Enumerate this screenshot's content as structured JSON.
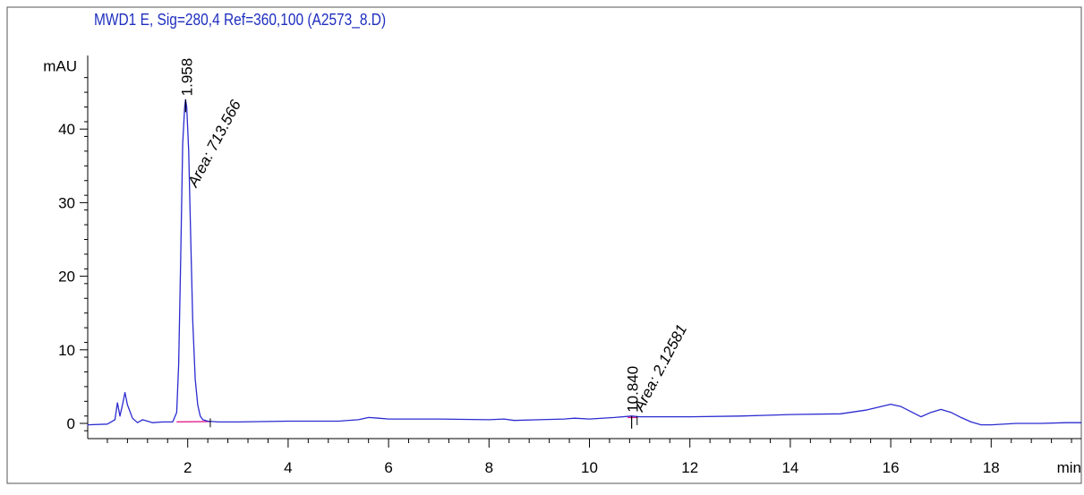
{
  "chart_data": {
    "type": "line",
    "title": "MWD1 E, Sig=280,4 Ref=360,100 (A2573_8.D)",
    "ylabel": "mAU",
    "xlabel": "min",
    "xlim": [
      0,
      19.8
    ],
    "ylim": [
      -2,
      50
    ],
    "x_ticks": [
      2,
      4,
      6,
      8,
      10,
      12,
      14,
      16,
      18
    ],
    "y_ticks": [
      0,
      10,
      20,
      30,
      40
    ],
    "grid": false,
    "legend": "none",
    "colors": {
      "trace": "#2b2bd0",
      "baseline": "#e0208a",
      "title": "#1f2fbf",
      "text": "#000000"
    },
    "series": [
      {
        "values_x": [
          0.0,
          0.4,
          0.55,
          0.6,
          0.65,
          0.7,
          0.75,
          0.8,
          0.9,
          1.0,
          1.1,
          1.2,
          1.3,
          1.5,
          1.7,
          1.78,
          1.82,
          1.86,
          1.9,
          1.94,
          1.958,
          1.98,
          2.02,
          2.06,
          2.1,
          2.15,
          2.2,
          2.25,
          2.3,
          2.4,
          2.6,
          3.0,
          4.0,
          5.0,
          5.4,
          5.6,
          5.8,
          6.0,
          7.0,
          8.0,
          8.3,
          8.5,
          9.0,
          9.5,
          9.7,
          10.0,
          10.5,
          10.84,
          11.0,
          11.5,
          12.0,
          13.0,
          13.5,
          14.0,
          15.0,
          15.5,
          16.0,
          16.2,
          16.4,
          16.6,
          16.8,
          17.0,
          17.2,
          17.4,
          17.6,
          17.8,
          18.0,
          18.5,
          19.0,
          19.5,
          19.8
        ],
        "values_y": [
          -0.2,
          -0.1,
          0.5,
          2.8,
          1.0,
          2.5,
          4.2,
          2.5,
          0.7,
          0.1,
          0.5,
          0.3,
          0.1,
          0.2,
          0.2,
          1.5,
          8.0,
          22.0,
          38.0,
          43.0,
          44.0,
          43.0,
          37.0,
          25.0,
          14.0,
          6.0,
          2.5,
          1.0,
          0.5,
          0.3,
          0.2,
          0.2,
          0.3,
          0.3,
          0.5,
          0.8,
          0.7,
          0.6,
          0.6,
          0.5,
          0.6,
          0.4,
          0.5,
          0.6,
          0.7,
          0.6,
          0.8,
          1.0,
          0.9,
          0.9,
          0.9,
          1.0,
          1.1,
          1.2,
          1.3,
          1.8,
          2.6,
          2.3,
          1.6,
          0.9,
          1.5,
          1.9,
          1.5,
          0.8,
          0.2,
          -0.2,
          -0.2,
          0.0,
          0.0,
          0.1,
          0.1
        ]
      }
    ],
    "baselines": [
      {
        "x": [
          1.78,
          2.45
        ],
        "y": [
          0.2,
          0.25
        ]
      },
      {
        "x": [
          10.76,
          10.95
        ],
        "y": [
          0.8,
          0.8
        ]
      }
    ],
    "peaks": [
      {
        "retention_time": "1.958",
        "area_label": "Area: 713.566",
        "x": 1.958,
        "y": 44.0,
        "marker_x": 2.45
      },
      {
        "retention_time": "10.840",
        "area_label": "Area: 2.12581",
        "x": 10.84,
        "y": 1.0,
        "marker_x": 10.95
      }
    ]
  }
}
